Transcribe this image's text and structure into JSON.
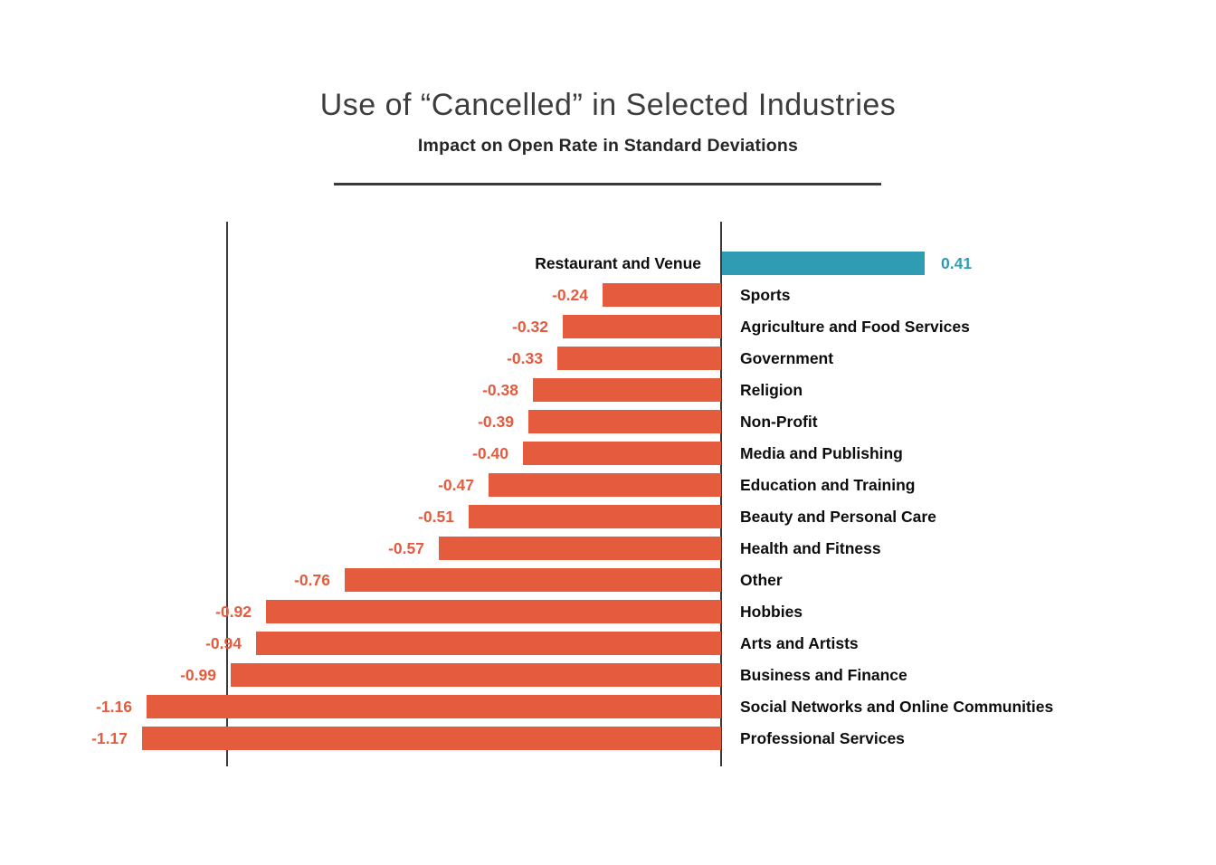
{
  "title": "Use of “Cancelled” in Selected Industries",
  "subtitle": "Impact on Open Rate in Standard Deviations",
  "chart_data": {
    "type": "bar",
    "orientation": "horizontal",
    "title": "Use of “Cancelled” in Selected Industries",
    "subtitle": "Impact on Open Rate in Standard Deviations",
    "xlabel": "",
    "ylabel": "",
    "xlim": [
      -1.3,
      0.6
    ],
    "zero_axis_value": 0,
    "reference_line_value": -1.0,
    "grid": false,
    "legend": "none",
    "value_label_format": "two-decimals",
    "categories": [
      "Restaurant and Venue",
      "Sports",
      "Agriculture and Food Services",
      "Government",
      "Religion",
      "Non-Profit",
      "Media and Publishing",
      "Education and Training",
      "Beauty and Personal Care",
      "Health and Fitness",
      "Other",
      "Hobbies",
      "Arts and Artists",
      "Business and Finance",
      "Social Networks and Online Communities",
      "Professional Services"
    ],
    "values": [
      0.41,
      -0.24,
      -0.32,
      -0.33,
      -0.38,
      -0.39,
      -0.4,
      -0.47,
      -0.51,
      -0.57,
      -0.76,
      -0.92,
      -0.94,
      -0.99,
      -1.16,
      -1.17
    ],
    "colors": {
      "positive_bar": "#2F9CB4",
      "negative_bar": "#E45B3E",
      "positive_value_text": "#2F9CB4",
      "negative_value_text": "#E45B3E",
      "category_text": "#0d0d0d",
      "axis_line": "#3a3a3a"
    }
  }
}
